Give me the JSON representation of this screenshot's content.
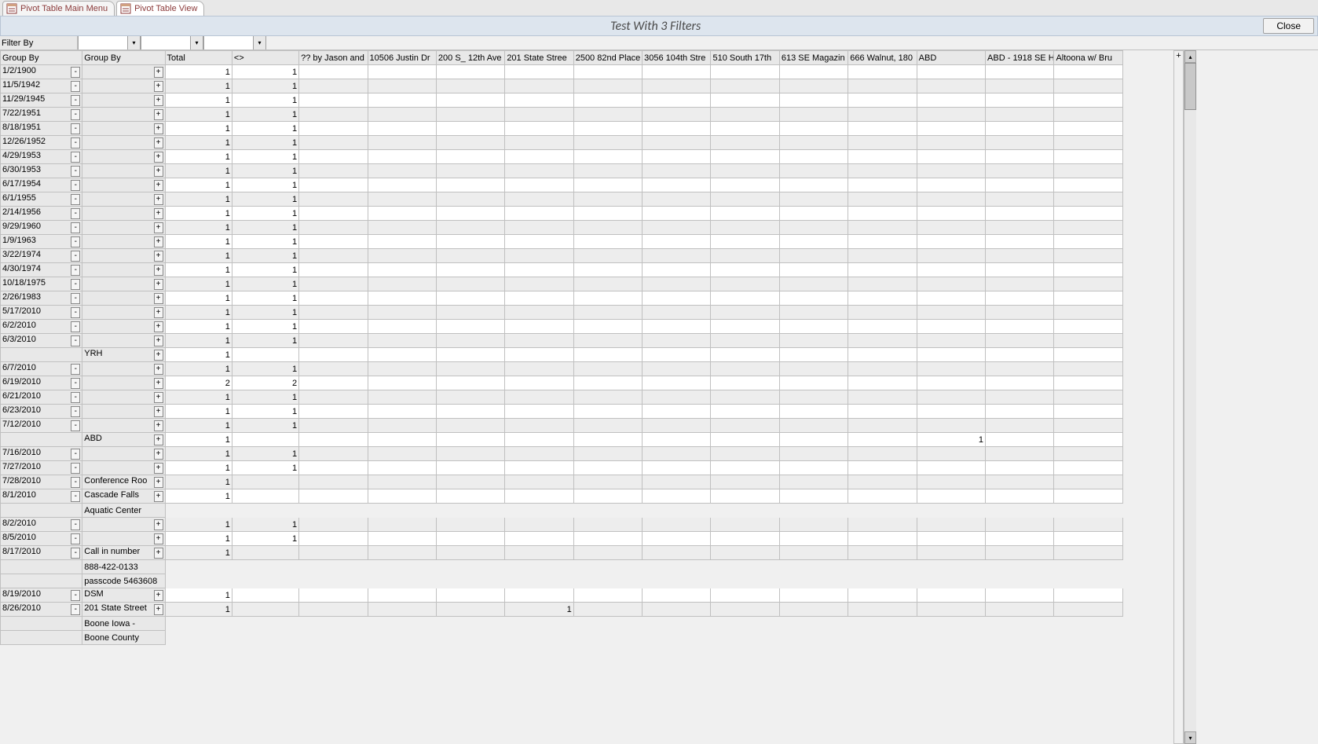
{
  "tabs": {
    "main_menu": "Pivot Table Main Menu",
    "view": "Pivot Table View"
  },
  "title": "Test With 3 Filters",
  "close_label": "Close",
  "filter_label": "Filter By",
  "headers": {
    "groupA": "Group By",
    "groupB": "Group By",
    "total": "Total",
    "blank": "<>",
    "cols": [
      "?? by Jason and",
      "10506 Justin Dr",
      "200 S_ 12th Ave",
      "201 State Stree",
      "2500 82nd Place",
      "3056 104th Stre",
      "510 South 17th",
      "613 SE Magazin",
      "666 Walnut, 180",
      "ABD",
      "ABD - 1918 SE H",
      "Altoona w/ Bru"
    ]
  },
  "plus": "+",
  "minus": "-",
  "rows": [
    {
      "a": "1/2/1900",
      "t": 1,
      "b": 1,
      "g": 0
    },
    {
      "a": "11/5/1942",
      "t": 1,
      "b": 1,
      "g": 1
    },
    {
      "a": "11/29/1945",
      "t": 1,
      "b": 1,
      "g": 0
    },
    {
      "a": "7/22/1951",
      "t": 1,
      "b": 1,
      "g": 1
    },
    {
      "a": "8/18/1951",
      "t": 1,
      "b": 1,
      "g": 0
    },
    {
      "a": "12/26/1952",
      "t": 1,
      "b": 1,
      "g": 1
    },
    {
      "a": "4/29/1953",
      "t": 1,
      "b": 1,
      "g": 0
    },
    {
      "a": "6/30/1953",
      "t": 1,
      "b": 1,
      "g": 1
    },
    {
      "a": "6/17/1954",
      "t": 1,
      "b": 1,
      "g": 0
    },
    {
      "a": "6/1/1955",
      "t": 1,
      "b": 1,
      "g": 1
    },
    {
      "a": "2/14/1956",
      "t": 1,
      "b": 1,
      "g": 0
    },
    {
      "a": "9/29/1960",
      "t": 1,
      "b": 1,
      "g": 1
    },
    {
      "a": "1/9/1963",
      "t": 1,
      "b": 1,
      "g": 0
    },
    {
      "a": "3/22/1974",
      "t": 1,
      "b": 1,
      "g": 1
    },
    {
      "a": "4/30/1974",
      "t": 1,
      "b": 1,
      "g": 0
    },
    {
      "a": "10/18/1975",
      "t": 1,
      "b": 1,
      "g": 1
    },
    {
      "a": "2/26/1983",
      "t": 1,
      "b": 1,
      "g": 0
    },
    {
      "a": "5/17/2010",
      "t": 1,
      "b": 1,
      "g": 1
    },
    {
      "a": "6/2/2010",
      "t": 1,
      "b": 1,
      "g": 0
    },
    {
      "a": "6/3/2010",
      "t": 1,
      "b": 1,
      "g": 1
    },
    {
      "a": "",
      "sub": "YRH",
      "t": 1,
      "b": "",
      "g": 0,
      "noA": true
    },
    {
      "a": "6/7/2010",
      "t": 1,
      "b": 1,
      "g": 1
    },
    {
      "a": "6/19/2010",
      "t": 2,
      "b": 2,
      "g": 0
    },
    {
      "a": "6/21/2010",
      "t": 1,
      "b": 1,
      "g": 1
    },
    {
      "a": "6/23/2010",
      "t": 1,
      "b": 1,
      "g": 0
    },
    {
      "a": "7/12/2010",
      "t": 1,
      "b": 1,
      "g": 1
    },
    {
      "a": "",
      "sub": "ABD",
      "t": 1,
      "b": "",
      "g": 0,
      "abd": 1,
      "noA": true
    },
    {
      "a": "7/16/2010",
      "t": 1,
      "b": 1,
      "g": 1
    },
    {
      "a": "7/27/2010",
      "t": 1,
      "b": 1,
      "g": 0
    },
    {
      "a": "7/28/2010",
      "sub": "Conference Roo",
      "t": 1,
      "b": "",
      "g": 1
    },
    {
      "a": "8/1/2010",
      "sub": "Cascade Falls",
      "t": 1,
      "b": "",
      "g": 0
    },
    {
      "a": "",
      "sub": "Aquatic Center",
      "t": "",
      "b": "",
      "g": 0,
      "noA": true,
      "noPlus": true,
      "noTotal": true
    },
    {
      "a": "8/2/2010",
      "t": 1,
      "b": 1,
      "g": 1
    },
    {
      "a": "8/5/2010",
      "t": 1,
      "b": 1,
      "g": 0
    },
    {
      "a": "8/17/2010",
      "sub": "Call in number",
      "t": 1,
      "b": "",
      "g": 1
    },
    {
      "a": "",
      "sub": "888-422-0133",
      "t": "",
      "b": "",
      "g": 1,
      "noA": true,
      "noPlus": true,
      "noTotal": true
    },
    {
      "a": "",
      "sub": "passcode 5463608",
      "t": "",
      "b": "",
      "g": 1,
      "noA": true,
      "noPlus": true,
      "noTotal": true
    },
    {
      "a": "8/19/2010",
      "sub": "DSM",
      "t": 1,
      "b": "",
      "g": 0
    },
    {
      "a": "8/26/2010",
      "sub": "201 State Street",
      "t": 1,
      "b": "",
      "g": 1,
      "c3": 1
    },
    {
      "a": "",
      "sub": "Boone Iowa -",
      "t": "",
      "b": "",
      "g": 1,
      "noA": true,
      "noPlus": true,
      "noTotal": true
    },
    {
      "a": "",
      "sub": "Boone County",
      "t": "",
      "b": "",
      "g": 1,
      "noA": true,
      "noPlus": true,
      "noTotal": true
    }
  ]
}
